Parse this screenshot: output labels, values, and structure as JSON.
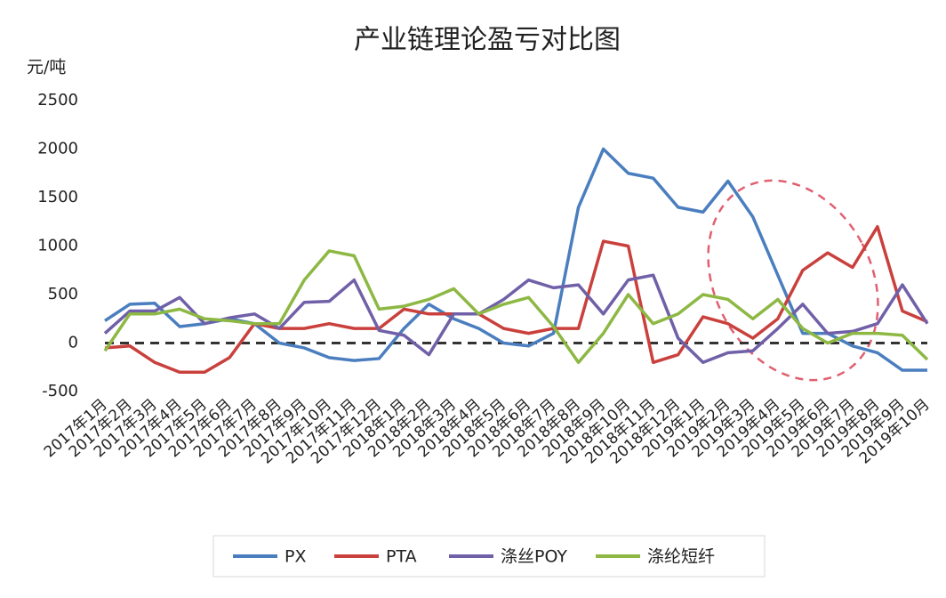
{
  "chart_data": {
    "type": "line",
    "title": "产业链理论盈亏对比图",
    "y_label": "元/吨",
    "categories": [
      "2017年1月",
      "2017年2月",
      "2017年3月",
      "2017年4月",
      "2017年5月",
      "2017年6月",
      "2017年7月",
      "2017年8月",
      "2017年9月",
      "2017年10月",
      "2017年11月",
      "2017年12月",
      "2018年1月",
      "2018年2月",
      "2018年3月",
      "2018年4月",
      "2018年5月",
      "2018年6月",
      "2018年7月",
      "2018年8月",
      "2018年9月",
      "2018年10月",
      "2018年11月",
      "2018年12月",
      "2019年1月",
      "2019年2月",
      "2019年3月",
      "2019年4月",
      "2019年5月",
      "2019年6月",
      "2019年7月",
      "2019年8月",
      "2019年9月",
      "2019年10月"
    ],
    "series": [
      {
        "name": "PX",
        "color": "#4a7ebf",
        "values": [
          230,
          400,
          410,
          170,
          200,
          250,
          200,
          0,
          -50,
          -150,
          -180,
          -160,
          150,
          400,
          250,
          150,
          0,
          -30,
          100,
          1400,
          2000,
          1750,
          1700,
          1400,
          1350,
          1670,
          1300,
          700,
          100,
          100,
          -30,
          -100,
          -280,
          -280
        ]
      },
      {
        "name": "PTA",
        "color": "#c9403c",
        "values": [
          -50,
          -30,
          -200,
          -300,
          -300,
          -150,
          200,
          150,
          150,
          200,
          150,
          150,
          350,
          300,
          300,
          300,
          150,
          100,
          150,
          150,
          1050,
          1000,
          -200,
          -120,
          270,
          200,
          50,
          250,
          750,
          930,
          780,
          1200,
          330,
          220
        ]
      },
      {
        "name": "涤丝POY",
        "color": "#7060a8",
        "values": [
          100,
          330,
          330,
          470,
          200,
          260,
          300,
          150,
          420,
          430,
          650,
          130,
          80,
          -120,
          300,
          300,
          450,
          650,
          570,
          600,
          300,
          650,
          700,
          50,
          -200,
          -100,
          -80,
          150,
          400,
          100,
          120,
          200,
          600,
          200
        ]
      },
      {
        "name": "涤纶短纤",
        "color": "#8db843",
        "values": [
          -80,
          300,
          300,
          350,
          250,
          230,
          200,
          200,
          650,
          950,
          900,
          350,
          380,
          450,
          560,
          300,
          400,
          470,
          170,
          -200,
          100,
          500,
          200,
          300,
          500,
          450,
          250,
          450,
          150,
          0,
          100,
          100,
          80,
          -170
        ]
      }
    ],
    "ylim": [
      -500,
      2500
    ],
    "yticks": [
      -500,
      0,
      500,
      1000,
      1500,
      2000,
      2500
    ]
  }
}
